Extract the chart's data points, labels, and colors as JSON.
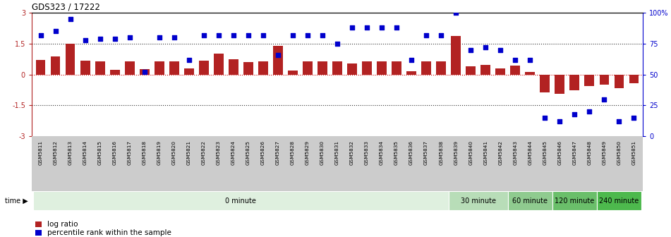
{
  "title": "GDS323 / 17222",
  "samples": [
    "GSM5811",
    "GSM5812",
    "GSM5813",
    "GSM5814",
    "GSM5815",
    "GSM5816",
    "GSM5817",
    "GSM5818",
    "GSM5819",
    "GSM5820",
    "GSM5821",
    "GSM5822",
    "GSM5823",
    "GSM5824",
    "GSM5825",
    "GSM5826",
    "GSM5827",
    "GSM5828",
    "GSM5829",
    "GSM5830",
    "GSM5831",
    "GSM5832",
    "GSM5833",
    "GSM5834",
    "GSM5835",
    "GSM5836",
    "GSM5837",
    "GSM5838",
    "GSM5839",
    "GSM5840",
    "GSM5841",
    "GSM5842",
    "GSM5843",
    "GSM5844",
    "GSM5845",
    "GSM5846",
    "GSM5847",
    "GSM5848",
    "GSM5849",
    "GSM5850",
    "GSM5851"
  ],
  "log_ratio": [
    0.72,
    0.88,
    1.48,
    0.68,
    0.65,
    0.22,
    0.62,
    0.25,
    0.62,
    0.62,
    0.3,
    0.68,
    1.02,
    0.75,
    0.6,
    0.62,
    1.38,
    0.18,
    0.62,
    0.62,
    0.62,
    0.52,
    0.62,
    0.62,
    0.62,
    0.14,
    0.62,
    0.62,
    1.88,
    0.38,
    0.48,
    0.28,
    0.42,
    0.12,
    -0.88,
    -0.93,
    -0.78,
    -0.58,
    -0.48,
    -0.68,
    -0.42
  ],
  "percentile": [
    82,
    85,
    95,
    78,
    79,
    79,
    80,
    52,
    80,
    80,
    62,
    82,
    82,
    82,
    82,
    82,
    66,
    82,
    82,
    82,
    75,
    88,
    88,
    88,
    88,
    62,
    82,
    82,
    100,
    70,
    72,
    70,
    62,
    62,
    15,
    12,
    18,
    20,
    30,
    12,
    15
  ],
  "bar_color": "#b22222",
  "dot_color": "#0000cc",
  "bg_color": "#ffffff",
  "axline_red": "#cc0000",
  "dotted_color": "#333333",
  "ylim_left": [
    -3,
    3
  ],
  "ylim_right": [
    0,
    100
  ],
  "yticks_left": [
    -3,
    -1.5,
    0,
    1.5,
    3
  ],
  "yticks_right": [
    0,
    25,
    50,
    75,
    100
  ],
  "label_panel_color": "#cccccc",
  "time_groups": [
    {
      "label": "0 minute",
      "start": 0,
      "end": 28,
      "color": "#dff0df"
    },
    {
      "label": "30 minute",
      "start": 28,
      "end": 32,
      "color": "#b8ddb8"
    },
    {
      "label": "60 minute",
      "start": 32,
      "end": 35,
      "color": "#8fcb8f"
    },
    {
      "label": "120 minute",
      "start": 35,
      "end": 38,
      "color": "#6abf6a"
    },
    {
      "label": "240 minute",
      "start": 38,
      "end": 41,
      "color": "#4db94d"
    }
  ],
  "legend_red_label": "log ratio",
  "legend_blue_label": "percentile rank within the sample"
}
